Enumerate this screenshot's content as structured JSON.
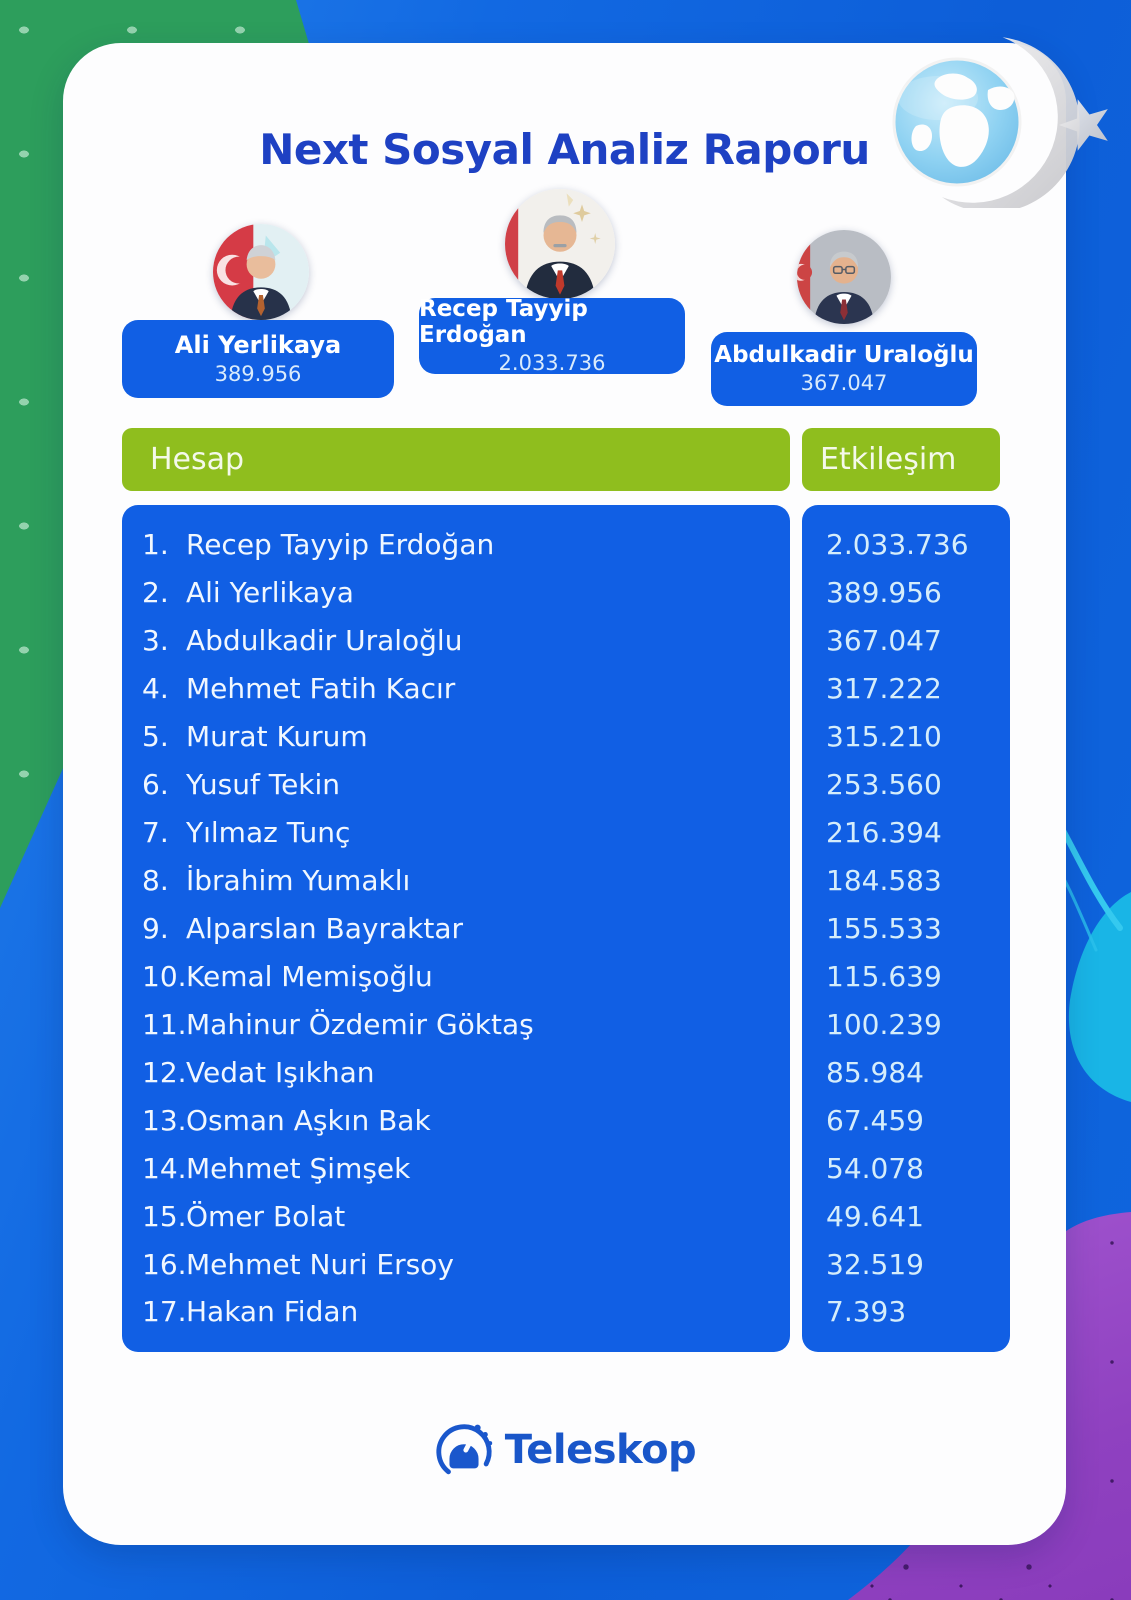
{
  "title": "Next Sosyal Analiz Raporu",
  "top_profiles": [
    {
      "name": "Ali Yerlikaya",
      "value": "389.956"
    },
    {
      "name": "Recep Tayyip Erdoğan",
      "value": "2.033.736"
    },
    {
      "name": "Abdulkadir Uraloğlu",
      "value": "367.047"
    }
  ],
  "table": {
    "headers": {
      "account": "Hesap",
      "engagement": "Etkileşim"
    },
    "rows": [
      {
        "rank": "1.",
        "name": "Recep Tayyip Erdoğan",
        "value": "2.033.736"
      },
      {
        "rank": "2.",
        "name": "Ali Yerlikaya",
        "value": "389.956"
      },
      {
        "rank": "3.",
        "name": "Abdulkadir Uraloğlu",
        "value": "367.047"
      },
      {
        "rank": "4.",
        "name": "Mehmet Fatih Kacır",
        "value": "317.222"
      },
      {
        "rank": "5.",
        "name": "Murat Kurum",
        "value": "315.210"
      },
      {
        "rank": "6.",
        "name": "Yusuf Tekin",
        "value": "253.560"
      },
      {
        "rank": "7.",
        "name": "Yılmaz Tunç",
        "value": "216.394"
      },
      {
        "rank": "8.",
        "name": "İbrahim Yumaklı",
        "value": "184.583"
      },
      {
        "rank": "9.",
        "name": "Alparslan Bayraktar",
        "value": "155.533"
      },
      {
        "rank": "10.",
        "name": "Kemal Memişoğlu",
        "value": "115.639"
      },
      {
        "rank": "11.",
        "name": "Mahinur Özdemir Göktaş",
        "value": "100.239"
      },
      {
        "rank": "12.",
        "name": "Vedat Işıkhan",
        "value": "85.984"
      },
      {
        "rank": "13.",
        "name": "Osman Aşkın Bak",
        "value": "67.459"
      },
      {
        "rank": "14.",
        "name": "Mehmet Şimşek",
        "value": "54.078"
      },
      {
        "rank": "15.",
        "name": "Ömer Bolat",
        "value": "49.641"
      },
      {
        "rank": "16.",
        "name": "Mehmet Nuri Ersoy",
        "value": "32.519"
      },
      {
        "rank": "17.",
        "name": "Hakan Fidan",
        "value": "7.393"
      }
    ]
  },
  "footer": {
    "brand": "Teleskop"
  },
  "icons": [
    "globe-crescent-logo",
    "teleskop-observatory-icon",
    "avatar"
  ],
  "colors": {
    "card_bg": "#fdfdfe",
    "title_blue": "#1e41c3",
    "box_blue": "#115fe4",
    "header_green": "#8fbe1e",
    "bg_green": "#2d9e5c",
    "bg_blue": "#0f62da",
    "bg_purple": "#9a4ecb",
    "accent_cyan": "#19b5e6",
    "teleskop_blue": "#1956c9",
    "logo_red": "#c85a60"
  },
  "chart_data": {
    "type": "table",
    "title": "Next Sosyal Analiz Raporu",
    "columns": [
      "Hesap",
      "Etkileşim"
    ],
    "rows": [
      [
        "Recep Tayyip Erdoğan",
        2033736
      ],
      [
        "Ali Yerlikaya",
        389956
      ],
      [
        "Abdulkadir Uraloğlu",
        367047
      ],
      [
        "Mehmet Fatih Kacır",
        317222
      ],
      [
        "Murat Kurum",
        315210
      ],
      [
        "Yusuf Tekin",
        253560
      ],
      [
        "Yılmaz Tunç",
        216394
      ],
      [
        "İbrahim Yumaklı",
        184583
      ],
      [
        "Alparslan Bayraktar",
        155533
      ],
      [
        "Kemal Memişoğlu",
        115639
      ],
      [
        "Mahinur Özdemir Göktaş",
        100239
      ],
      [
        "Vedat Işıkhan",
        85984
      ],
      [
        "Osman Aşkın Bak",
        67459
      ],
      [
        "Mehmet Şimşek",
        54078
      ],
      [
        "Ömer Bolat",
        49641
      ],
      [
        "Mehmet Nuri Ersoy",
        32519
      ],
      [
        "Hakan Fidan",
        7393
      ]
    ],
    "legend": "none",
    "notes": "Leaderboard infographic of Next Sosyal engagement totals"
  }
}
